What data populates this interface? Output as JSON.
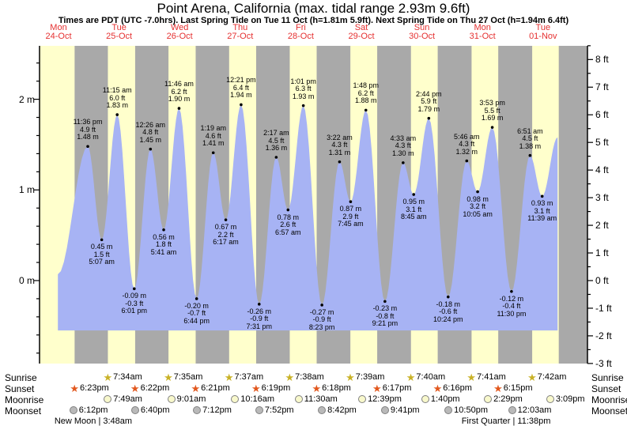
{
  "chart_data": {
    "type": "area",
    "title": "Point Arena, California (max. tidal range 2.93m 9.6ft)",
    "subtitle": "Times are PDT (UTC -7.0hrs). Last Spring Tide on Tue 11 Oct (h=1.81m 5.9ft). Next Spring Tide on Thu 27 Oct (h=1.94m 6.4ft)",
    "colors": {
      "day_band": "#ffffcc",
      "night_band": "#a9a9a9",
      "tide_fill": "#a7b3f4",
      "day_label": "#e53030",
      "sunrise_star": "#c9b227",
      "sunset_star": "#e2581e",
      "moonrise_fill": "#f8f8cc",
      "moonset_fill": "#b9b9b9",
      "axis": "#000000"
    },
    "days": [
      {
        "day": "Mon",
        "date": "24-Oct"
      },
      {
        "day": "Tue",
        "date": "25-Oct"
      },
      {
        "day": "Wed",
        "date": "26-Oct"
      },
      {
        "day": "Thu",
        "date": "27-Oct"
      },
      {
        "day": "Fri",
        "date": "28-Oct"
      },
      {
        "day": "Sat",
        "date": "29-Oct"
      },
      {
        "day": "Sun",
        "date": "30-Oct"
      },
      {
        "day": "Mon",
        "date": "31-Oct"
      },
      {
        "day": "Tue",
        "date": "01-Nov"
      }
    ],
    "y_axis_left": {
      "unit": "m",
      "ticks": [
        {
          "v": 2,
          "label": "2 m"
        },
        {
          "v": 1,
          "label": "1 m"
        },
        {
          "v": 0,
          "label": "0 m"
        }
      ],
      "minor_step": 0.2,
      "minor_range": [
        -0.8,
        2.4
      ]
    },
    "y_axis_right": {
      "unit": "ft",
      "ticks": [
        8,
        7,
        6,
        5,
        4,
        3,
        2,
        1,
        0,
        -1,
        -2,
        -3
      ],
      "suffix": " ft",
      "minor_step": 0.5
    },
    "night_bands_t": [
      [
        0.766,
        1.3153
      ],
      [
        1.7653,
        2.316
      ],
      [
        2.7646,
        3.3174
      ],
      [
        3.7632,
        4.3181
      ],
      [
        4.7625,
        5.3188
      ],
      [
        5.7618,
        6.3194
      ],
      [
        6.7611,
        7.3201
      ],
      [
        7.7604,
        8.3208
      ],
      [
        8.7597,
        9.234
      ]
    ],
    "curve": {
      "start": {
        "t": 0.49,
        "m": 0.07
      },
      "end": {
        "t": 8.74,
        "m": 1.58
      },
      "fill_base_m": -0.55
    },
    "extremes": [
      {
        "type": "high",
        "t": 0.9833,
        "m": 1.48,
        "lines": [
          "11:36 pm",
          "4.9 ft",
          "1.48 m"
        ]
      },
      {
        "type": "low",
        "t": 1.2132,
        "m": 0.45,
        "lines": [
          "0.45 m",
          "1.5 ft",
          "5:07 am"
        ]
      },
      {
        "type": "high",
        "t": 1.4688,
        "m": 1.83,
        "lines": [
          "11:15 am",
          "6.0 ft",
          "1.83 m"
        ]
      },
      {
        "type": "low",
        "t": 1.7507,
        "m": -0.09,
        "lines": [
          "-0.09 m",
          "-0.3 ft",
          "6:01 pm"
        ]
      },
      {
        "type": "high",
        "t": 2.0181,
        "m": 1.45,
        "lines": [
          "12:26 am",
          "4.8 ft",
          "1.45 m"
        ]
      },
      {
        "type": "low",
        "t": 2.2368,
        "m": 0.56,
        "lines": [
          "0.56 m",
          "1.8 ft",
          "5:41 am"
        ]
      },
      {
        "type": "high",
        "t": 2.4903,
        "m": 1.9,
        "lines": [
          "11:46 am",
          "6.2 ft",
          "1.90 m"
        ]
      },
      {
        "type": "low",
        "t": 2.7806,
        "m": -0.2,
        "lines": [
          "-0.20 m",
          "-0.7 ft",
          "6:44 pm"
        ]
      },
      {
        "type": "high",
        "t": 3.0549,
        "m": 1.41,
        "lines": [
          "1:19 am",
          "4.6 ft",
          "1.41 m"
        ]
      },
      {
        "type": "low",
        "t": 3.2618,
        "m": 0.67,
        "lines": [
          "0.67 m",
          "2.2 ft",
          "6:17 am"
        ]
      },
      {
        "type": "high",
        "t": 3.5146,
        "m": 1.94,
        "lines": [
          "12:21 pm",
          "6.4 ft",
          "1.94 m"
        ]
      },
      {
        "type": "low",
        "t": 3.8132,
        "m": -0.26,
        "lines": [
          "-0.26 m",
          "-0.9 ft",
          "7:31 pm"
        ]
      },
      {
        "type": "high",
        "t": 4.0951,
        "m": 1.36,
        "lines": [
          "2:17 am",
          "4.5 ft",
          "1.36 m"
        ]
      },
      {
        "type": "low",
        "t": 4.2896,
        "m": 0.78,
        "lines": [
          "0.78 m",
          "2.6 ft",
          "6:57 am"
        ]
      },
      {
        "type": "high",
        "t": 4.5424,
        "m": 1.93,
        "lines": [
          "1:01 pm",
          "6.3 ft",
          "1.93 m"
        ]
      },
      {
        "type": "low",
        "t": 4.8493,
        "m": -0.27,
        "lines": [
          "-0.27 m",
          "-0.9 ft",
          "8:23 pm"
        ]
      },
      {
        "type": "high",
        "t": 5.1403,
        "m": 1.31,
        "lines": [
          "3:22 am",
          "4.3 ft",
          "1.31 m"
        ]
      },
      {
        "type": "low",
        "t": 5.3229,
        "m": 0.87,
        "lines": [
          "0.87 m",
          "2.9 ft",
          "7:45 am"
        ]
      },
      {
        "type": "high",
        "t": 5.575,
        "m": 1.88,
        "lines": [
          "1:48 pm",
          "6.2 ft",
          "1.88 m"
        ]
      },
      {
        "type": "low",
        "t": 5.8896,
        "m": -0.23,
        "lines": [
          "-0.23 m",
          "-0.8 ft",
          "9:21 pm"
        ]
      },
      {
        "type": "high",
        "t": 6.1896,
        "m": 1.3,
        "lines": [
          "4:33 am",
          "4.3 ft",
          "1.30 m"
        ]
      },
      {
        "type": "low",
        "t": 6.3646,
        "m": 0.95,
        "lines": [
          "0.95 m",
          "3.1 ft",
          "8:45 am"
        ]
      },
      {
        "type": "high",
        "t": 6.6139,
        "m": 1.79,
        "lines": [
          "2:44 pm",
          "5.9 ft",
          "1.79 m"
        ]
      },
      {
        "type": "low",
        "t": 6.9333,
        "m": -0.18,
        "lines": [
          "-0.18 m",
          "-0.6 ft",
          "10:24 pm"
        ]
      },
      {
        "type": "high",
        "t": 7.2403,
        "m": 1.32,
        "lines": [
          "5:46 am",
          "4.3 ft",
          "1.32 m"
        ]
      },
      {
        "type": "low",
        "t": 7.4201,
        "m": 0.98,
        "lines": [
          "0.98 m",
          "3.2 ft",
          "10:05 am"
        ]
      },
      {
        "type": "high",
        "t": 7.6618,
        "m": 1.69,
        "lines": [
          "3:53 pm",
          "5.5 ft",
          "1.69 m"
        ]
      },
      {
        "type": "low",
        "t": 7.9792,
        "m": -0.12,
        "lines": [
          "-0.12 m",
          "-0.4 ft",
          "11:30 pm"
        ]
      },
      {
        "type": "high",
        "t": 8.2854,
        "m": 1.38,
        "lines": [
          "6:51 am",
          "4.5 ft",
          "1.38 m"
        ]
      },
      {
        "type": "low",
        "t": 8.4854,
        "m": 0.93,
        "lines": [
          "0.93 m",
          "3.1 ft",
          "11:39 am"
        ]
      }
    ],
    "astro": {
      "rows": [
        {
          "label": "Sunrise",
          "icon": "sunrise-star-icon",
          "events": [
            {
              "t": 1.3153,
              "time": "7:34am"
            },
            {
              "t": 2.316,
              "time": "7:35am"
            },
            {
              "t": 3.3174,
              "time": "7:37am"
            },
            {
              "t": 4.3181,
              "time": "7:38am"
            },
            {
              "t": 5.3188,
              "time": "7:39am"
            },
            {
              "t": 6.3194,
              "time": "7:40am"
            },
            {
              "t": 7.3201,
              "time": "7:41am"
            },
            {
              "t": 8.3208,
              "time": "7:42am"
            }
          ]
        },
        {
          "label": "Sunset",
          "icon": "sunset-star-icon",
          "events": [
            {
              "t": 0.766,
              "time": "6:23pm"
            },
            {
              "t": 1.7653,
              "time": "6:22pm"
            },
            {
              "t": 2.7646,
              "time": "6:21pm"
            },
            {
              "t": 3.7632,
              "time": "6:19pm"
            },
            {
              "t": 4.7625,
              "time": "6:18pm"
            },
            {
              "t": 5.7618,
              "time": "6:17pm"
            },
            {
              "t": 6.7611,
              "time": "6:16pm"
            },
            {
              "t": 7.7604,
              "time": "6:15pm"
            }
          ]
        },
        {
          "label": "Moonrise",
          "icon": "moonrise-icon",
          "events": [
            {
              "t": 1.3257,
              "time": "7:49am"
            },
            {
              "t": 2.3757,
              "time": "9:01am"
            },
            {
              "t": 3.4278,
              "time": "10:16am"
            },
            {
              "t": 4.4792,
              "time": "11:30am"
            },
            {
              "t": 5.5271,
              "time": "12:39pm"
            },
            {
              "t": 6.5694,
              "time": "1:40pm"
            },
            {
              "t": 7.6035,
              "time": "2:29pm"
            },
            {
              "t": 8.6313,
              "time": "3:09pm"
            }
          ]
        },
        {
          "label": "Moonset",
          "icon": "moonset-icon",
          "events": [
            {
              "t": 0.7583,
              "time": "6:12pm"
            },
            {
              "t": 1.7778,
              "time": "6:40pm"
            },
            {
              "t": 2.8,
              "time": "7:12pm"
            },
            {
              "t": 3.8278,
              "time": "7:52pm"
            },
            {
              "t": 4.8625,
              "time": "8:42pm"
            },
            {
              "t": 5.9035,
              "time": "9:41pm"
            },
            {
              "t": 6.9514,
              "time": "10:50pm"
            },
            {
              "t": 8.0021,
              "time": "12:03am"
            }
          ]
        }
      ],
      "phases": [
        {
          "text": "New Moon | 3:48am",
          "t": 1.074
        },
        {
          "text": "First Quarter | 11:38pm",
          "t": 7.89
        }
      ]
    }
  }
}
